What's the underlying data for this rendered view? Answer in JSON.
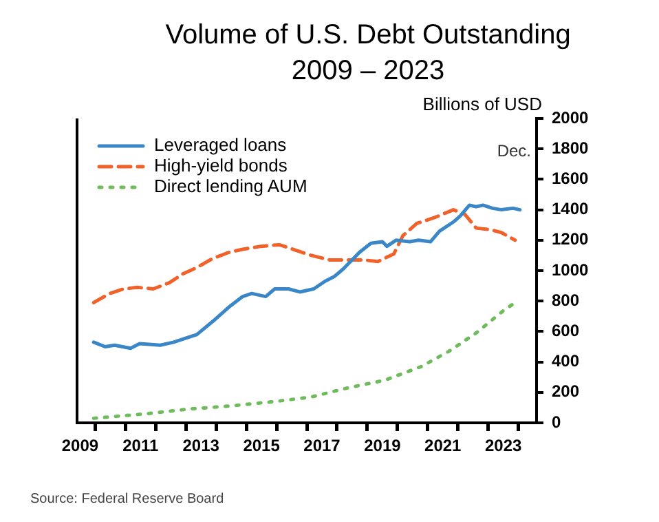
{
  "chart_data": {
    "type": "line",
    "title": "Volume of U.S. Debt Outstanding",
    "subtitle": "2009 – 2023",
    "ylabel": "Billions of USD",
    "xlim": [
      2009.4,
      2024.6
    ],
    "xticks": [
      {
        "value": 2009.5,
        "label": "2009"
      },
      {
        "value": 2010,
        "label": null
      },
      {
        "value": 2011,
        "label": null
      },
      {
        "value": 2011.5,
        "label": "2011"
      },
      {
        "value": 2012,
        "label": null
      },
      {
        "value": 2013,
        "label": null
      },
      {
        "value": 2013.5,
        "label": "2013"
      },
      {
        "value": 2014,
        "label": null
      },
      {
        "value": 2015,
        "label": null
      },
      {
        "value": 2015.5,
        "label": "2015"
      },
      {
        "value": 2016,
        "label": null
      },
      {
        "value": 2017,
        "label": null
      },
      {
        "value": 2017.5,
        "label": "2017"
      },
      {
        "value": 2018,
        "label": null
      },
      {
        "value": 2019,
        "label": null
      },
      {
        "value": 2019.5,
        "label": "2019"
      },
      {
        "value": 2020,
        "label": null
      },
      {
        "value": 2021,
        "label": null
      },
      {
        "value": 2021.5,
        "label": "2021"
      },
      {
        "value": 2022,
        "label": null
      },
      {
        "value": 2023,
        "label": null
      },
      {
        "value": 2023.5,
        "label": "2023"
      },
      {
        "value": 2024,
        "label": null
      }
    ],
    "ylim": [
      0,
      2000
    ],
    "yticks": [
      0,
      200,
      400,
      600,
      800,
      1000,
      1200,
      1400,
      1600,
      1800,
      2000
    ],
    "grid": false,
    "legend": "top left",
    "marker": "none",
    "annotations": [
      "Dec.",
      "Source: Federal Reserve Board"
    ],
    "series": [
      {
        "name": "Leveraged loans",
        "color": "#3a87c8",
        "line_style": "solid",
        "x": [
          2009.95,
          2010.33,
          2010.64,
          2011.17,
          2011.47,
          2012.15,
          2012.6,
          2013.06,
          2013.36,
          2013.97,
          2014.42,
          2014.88,
          2015.18,
          2015.64,
          2015.94,
          2016.39,
          2016.77,
          2017.23,
          2017.6,
          2017.9,
          2018.2,
          2018.74,
          2019.12,
          2019.5,
          2019.65,
          2019.95,
          2020.4,
          2020.7,
          2021.09,
          2021.39,
          2021.85,
          2022.08,
          2022.38,
          2022.6,
          2022.83,
          2023.14,
          2023.44,
          2023.82,
          2024.05
        ],
        "values": [
          530,
          500,
          510,
          490,
          520,
          510,
          530,
          560,
          580,
          680,
          760,
          830,
          850,
          830,
          880,
          880,
          860,
          880,
          930,
          960,
          1010,
          1120,
          1180,
          1190,
          1160,
          1200,
          1190,
          1200,
          1190,
          1260,
          1320,
          1360,
          1430,
          1420,
          1430,
          1410,
          1400,
          1410,
          1400
        ]
      },
      {
        "name": "High-yield bonds",
        "color": "#f0622a",
        "line_style": "dashed",
        "x": [
          2009.95,
          2010.48,
          2010.94,
          2011.39,
          2011.92,
          2012.45,
          2012.91,
          2013.36,
          2013.89,
          2014.42,
          2014.88,
          2015.48,
          2016.09,
          2016.55,
          2017.15,
          2017.76,
          2018.36,
          2018.89,
          2019.35,
          2019.88,
          2020.18,
          2020.64,
          2021.24,
          2021.85,
          2022.23,
          2022.6,
          2023.06,
          2023.44,
          2023.89
        ],
        "values": [
          790,
          850,
          880,
          890,
          880,
          920,
          980,
          1020,
          1080,
          1120,
          1140,
          1160,
          1170,
          1140,
          1100,
          1070,
          1070,
          1070,
          1060,
          1110,
          1230,
          1310,
          1350,
          1400,
          1370,
          1280,
          1270,
          1250,
          1200
        ]
      },
      {
        "name": "Direct lending AUM",
        "color": "#6dbb5a",
        "line_style": "dotted",
        "x": [
          2009.95,
          2011.7,
          2013.06,
          2014.42,
          2015.94,
          2017.15,
          2018.36,
          2019.58,
          2020.79,
          2021.7,
          2022.6,
          2023.52,
          2023.82
        ],
        "values": [
          30,
          60,
          90,
          110,
          140,
          170,
          230,
          280,
          370,
          470,
          590,
          740,
          780
        ]
      }
    ]
  }
}
